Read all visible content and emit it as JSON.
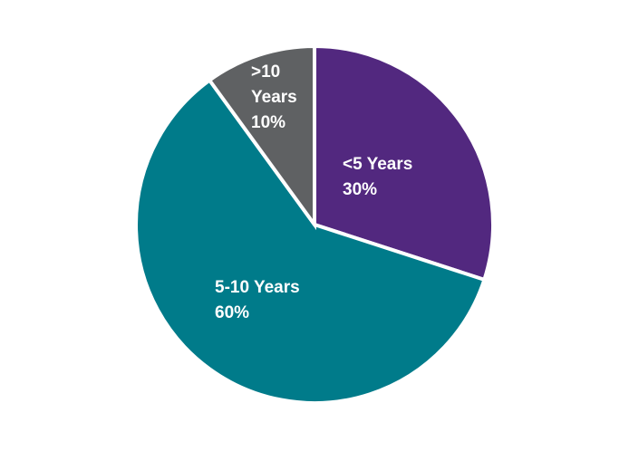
{
  "chart_data": {
    "type": "pie",
    "categories": [
      "<5 Years",
      "5-10 Years",
      ">10 Years"
    ],
    "values": [
      30,
      60,
      10
    ],
    "value_labels": [
      "30%",
      "60%",
      "10%"
    ],
    "colors": [
      "#52287f",
      "#007b8a",
      "#5f6163"
    ]
  }
}
